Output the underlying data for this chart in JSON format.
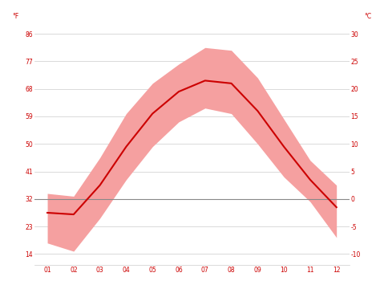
{
  "months": [
    1,
    2,
    3,
    4,
    5,
    6,
    7,
    8,
    9,
    10,
    11,
    12
  ],
  "month_labels": [
    "01",
    "02",
    "03",
    "04",
    "05",
    "06",
    "07",
    "08",
    "09",
    "10",
    "11",
    "12"
  ],
  "avg_temp": [
    -2.5,
    -2.8,
    2.5,
    9.5,
    15.5,
    19.5,
    21.5,
    21.0,
    16.0,
    9.5,
    3.5,
    -1.5
  ],
  "max_temp": [
    1.0,
    0.5,
    7.5,
    15.5,
    21.0,
    24.5,
    27.5,
    27.0,
    22.0,
    14.5,
    7.0,
    2.5
  ],
  "min_temp": [
    -8.0,
    -9.5,
    -3.5,
    3.5,
    9.5,
    14.0,
    16.5,
    15.5,
    10.0,
    4.0,
    -0.5,
    -7.0
  ],
  "line_color": "#cc0000",
  "fill_color": "#f5a0a0",
  "zero_line_color": "#888888",
  "bg_color": "#ffffff",
  "grid_color": "#cccccc",
  "label_color": "#cc0000",
  "yticks_c": [
    30,
    25,
    20,
    15,
    10,
    5,
    0,
    -5,
    -10
  ],
  "yticks_f": [
    86,
    77,
    68,
    59,
    50,
    41,
    32,
    23,
    14
  ],
  "ylim": [
    -12,
    32
  ],
  "xlim": [
    0.5,
    12.5
  ],
  "left_label": "°F",
  "right_label": "°C"
}
